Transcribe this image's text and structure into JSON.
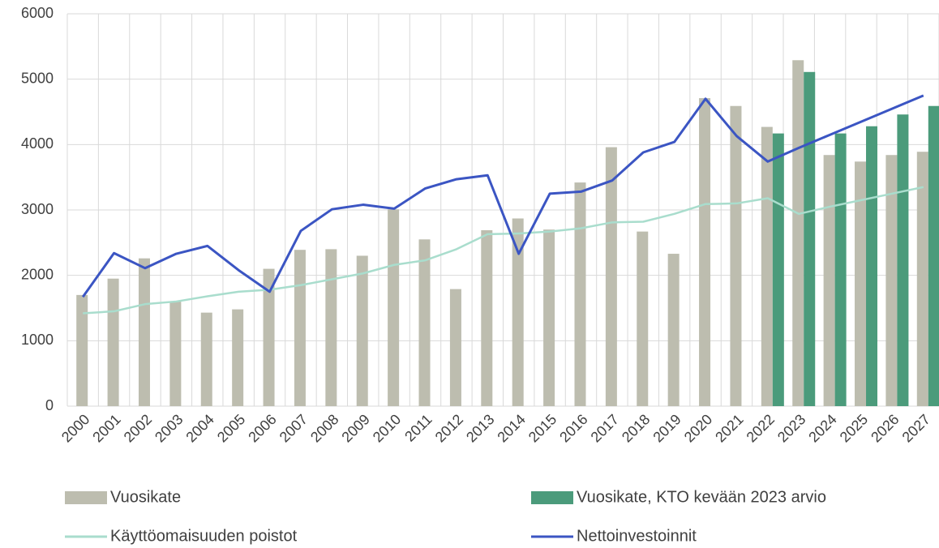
{
  "chart_data": {
    "type": "bar",
    "categories": [
      "2000",
      "2001",
      "2002",
      "2003",
      "2004",
      "2005",
      "2006",
      "2007",
      "2008",
      "2009",
      "2010",
      "2011",
      "2012",
      "2013",
      "2014",
      "2015",
      "2016",
      "2017",
      "2018",
      "2019",
      "2020",
      "2021",
      "2022",
      "2023",
      "2024",
      "2025",
      "2026",
      "2027"
    ],
    "series": [
      {
        "name": "Vuosikate",
        "type": "bar",
        "color": "#bdbdaf",
        "values": [
          1700,
          1950,
          2260,
          1600,
          1430,
          1480,
          2100,
          2390,
          2400,
          2300,
          3010,
          2550,
          1790,
          2690,
          2870,
          2700,
          3420,
          3960,
          2670,
          2330,
          4710,
          4590,
          4270,
          5290,
          3840,
          3740,
          3840,
          3890
        ]
      },
      {
        "name": "Vuosikate, KTO kevään 2023 arvio",
        "type": "bar",
        "color": "#4b9b7b",
        "values": [
          null,
          null,
          null,
          null,
          null,
          null,
          null,
          null,
          null,
          null,
          null,
          null,
          null,
          null,
          null,
          null,
          null,
          null,
          null,
          null,
          null,
          null,
          4170,
          5110,
          4170,
          4280,
          4460,
          4590
        ]
      },
      {
        "name": "Käyttöomaisuuden poistot",
        "type": "line",
        "color": "#a9ddcd",
        "values": [
          1420,
          1450,
          1560,
          1600,
          1680,
          1750,
          1780,
          1850,
          1940,
          2030,
          2160,
          2230,
          2400,
          2630,
          2640,
          2670,
          2720,
          2810,
          2820,
          2940,
          3090,
          3100,
          3180,
          2940,
          3050,
          3150,
          3250,
          3350
        ]
      },
      {
        "name": "Nettoinvestoinnit",
        "type": "line",
        "color": "#3b55c3",
        "values": [
          1670,
          2340,
          2110,
          2330,
          2450,
          2080,
          1750,
          2680,
          3010,
          3080,
          3020,
          3330,
          3470,
          3530,
          2330,
          3250,
          3280,
          3450,
          3880,
          4040,
          4700,
          4130,
          3740,
          3950,
          4150,
          4350,
          4550,
          4750
        ]
      }
    ],
    "ylim": [
      0,
      6000
    ],
    "yticks": [
      0,
      1000,
      2000,
      3000,
      4000,
      5000,
      6000
    ],
    "grid": true
  }
}
